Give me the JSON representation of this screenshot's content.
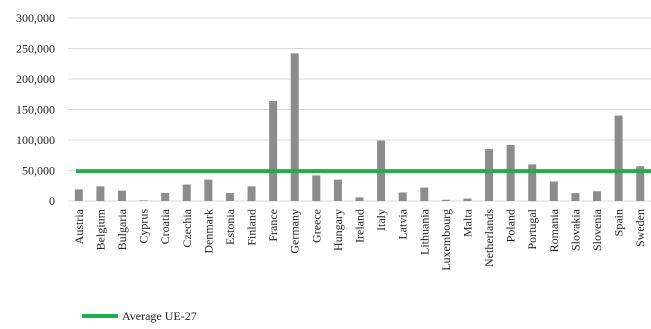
{
  "chart_data": {
    "type": "bar",
    "title": "",
    "xlabel": "",
    "ylabel": "",
    "ylim": [
      0,
      300000
    ],
    "yticks": [
      0,
      50000,
      100000,
      150000,
      200000,
      250000,
      300000
    ],
    "ytick_labels": [
      "0",
      "50,000",
      "100,000",
      "150,000",
      "200,000",
      "250,000",
      "300,000"
    ],
    "grid": true,
    "legend_position": "bottom-left",
    "categories": [
      "Austria",
      "Belgium",
      "Bulgaria",
      "Cyprus",
      "Croatia",
      "Czechia",
      "Denmark",
      "Estonia",
      "Finland",
      "France",
      "Germany",
      "Greece",
      "Hungary",
      "Ireland",
      "Italy",
      "Latvia",
      "Lithuania",
      "Luxembourg",
      "Malta",
      "Netherlands",
      "Poland",
      "Portugal",
      "Romania",
      "Slovakia",
      "Slovenia",
      "Spain",
      "Sweden"
    ],
    "series": [
      {
        "values": [
          19000,
          24000,
          17000,
          1000,
          13000,
          27000,
          35000,
          13000,
          24000,
          164000,
          242000,
          42000,
          35000,
          6000,
          99000,
          14000,
          22000,
          2000,
          4000,
          85000,
          92000,
          60000,
          32000,
          13000,
          16000,
          140000,
          57000
        ],
        "color": "#8c8c8c"
      }
    ],
    "reference_lines": [
      {
        "name": "Average UE-27",
        "value": 49000,
        "color": "#1fae4b"
      }
    ]
  }
}
